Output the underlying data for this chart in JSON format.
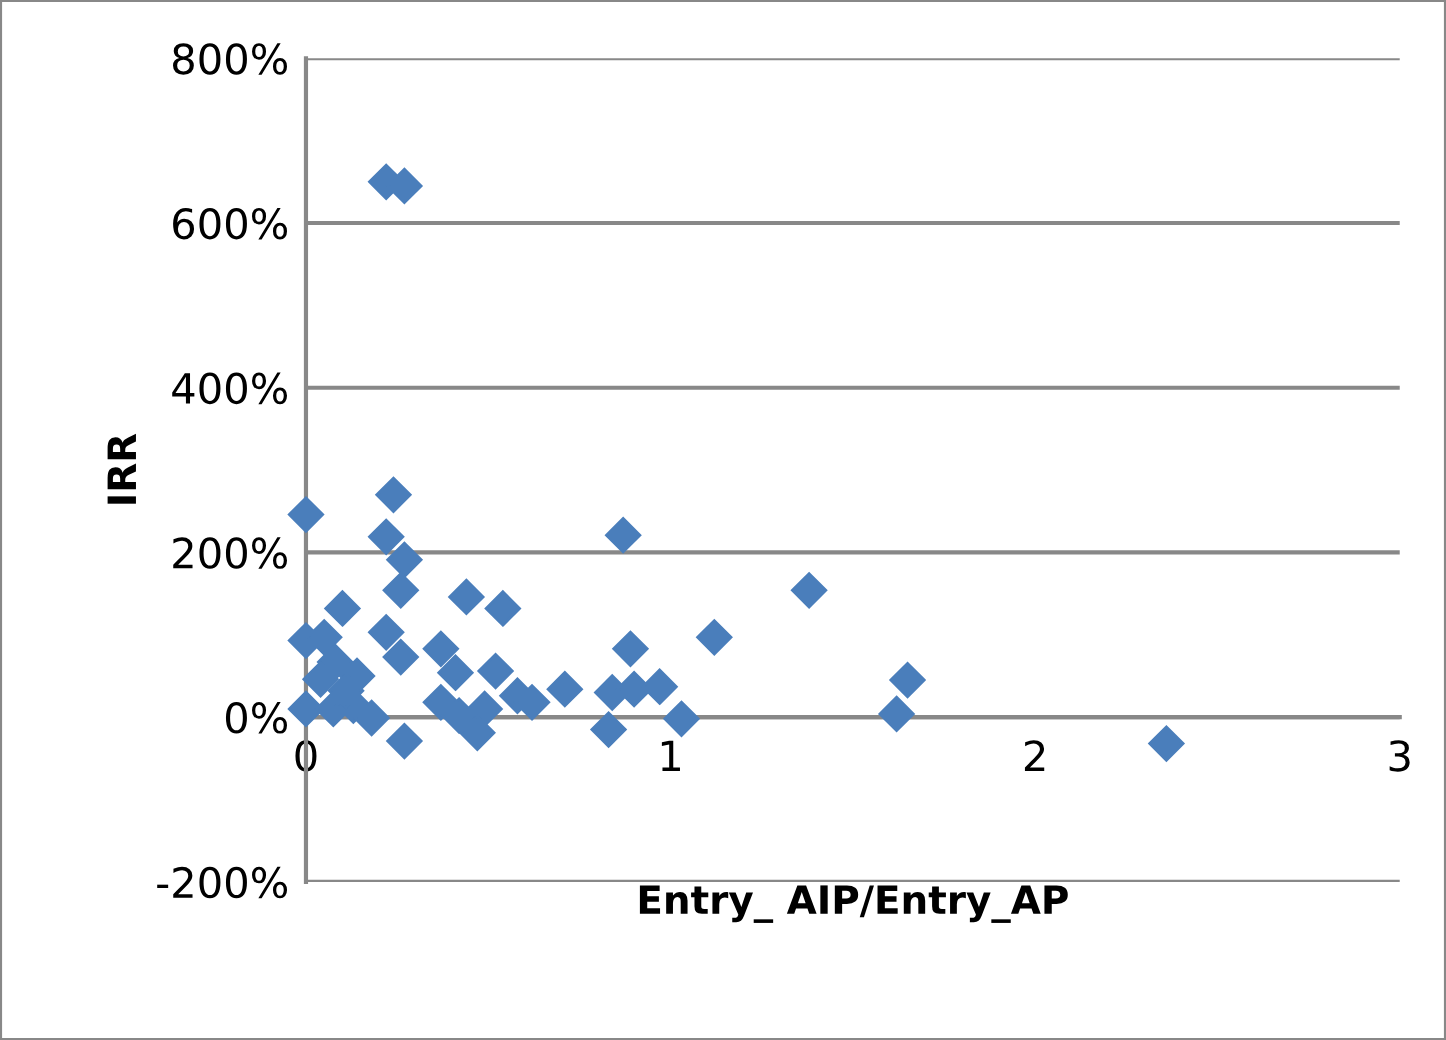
{
  "chart_data": {
    "type": "scatter",
    "xlabel": "Entry_ AIP/Entry_AP",
    "ylabel": "IRR",
    "x": [
      0.22,
      0.27,
      0,
      0.24,
      0.22,
      0.27,
      0.26,
      0.1,
      0.44,
      0.54,
      0.87,
      0.22,
      0.26,
      0.37,
      0,
      0.05,
      1.12,
      0.89,
      0.52,
      0.41,
      0.14,
      0.08,
      0.71,
      0.84,
      0.9,
      0.97,
      0.58,
      0.62,
      0.37,
      0,
      0.075,
      0.13,
      0.18,
      0.42,
      0.49,
      0.47,
      0.27,
      0.83,
      1.03,
      0.11,
      0.04,
      1.38,
      1.65,
      1.62,
      2.36
    ],
    "values": [
      650,
      645,
      246,
      270,
      219,
      191,
      154,
      132,
      146,
      132,
      221,
      103,
      73,
      83,
      93,
      97,
      97,
      83,
      56,
      54,
      50,
      67,
      34,
      30,
      34,
      37,
      26,
      18,
      18,
      10,
      10,
      14,
      -1,
      2,
      10,
      -19,
      -29,
      -15,
      -2,
      32,
      46,
      154,
      45,
      4,
      -32
    ],
    "color": "#4a7ebb",
    "marker": "diamond",
    "xlim": [
      0,
      3
    ],
    "xticks": [
      0,
      1,
      2,
      3
    ],
    "ylim": [
      -200,
      800
    ],
    "yticks": [
      {
        "value": -200,
        "label": "-200%"
      },
      {
        "value": 0,
        "label": "0%"
      },
      {
        "value": 200,
        "label": "200%"
      },
      {
        "value": 400,
        "label": "400%"
      },
      {
        "value": 600,
        "label": "600%"
      },
      {
        "value": 800,
        "label": "800%"
      }
    ],
    "grid": "y"
  }
}
